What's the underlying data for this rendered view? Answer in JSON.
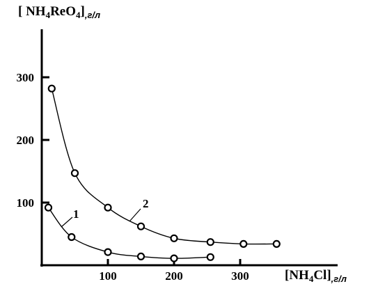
{
  "chart_data": {
    "type": "line",
    "ylabel": {
      "main": "[ NH",
      "sub1": "4",
      "mid": "ReO",
      "sub2": "4",
      "tail": "]",
      "unit": ",г/л"
    },
    "xlabel": {
      "main": "[NH",
      "sub1": "4",
      "tail": "Cl]",
      "unit": ",г/л"
    },
    "xticks": [
      100,
      200,
      300
    ],
    "yticks": [
      100,
      200,
      300
    ],
    "xlim": [
      -10,
      440
    ],
    "ylim": [
      0,
      380
    ],
    "grid": false,
    "series": [
      {
        "name": "1",
        "x": [
          10,
          45,
          100,
          150,
          200,
          255
        ],
        "y": [
          92,
          45,
          21,
          14,
          11,
          13
        ]
      },
      {
        "name": "2",
        "x": [
          15,
          50,
          100,
          150,
          200,
          255,
          305,
          355
        ],
        "y": [
          282,
          147,
          92,
          62,
          43,
          37,
          34,
          34
        ]
      }
    ]
  }
}
